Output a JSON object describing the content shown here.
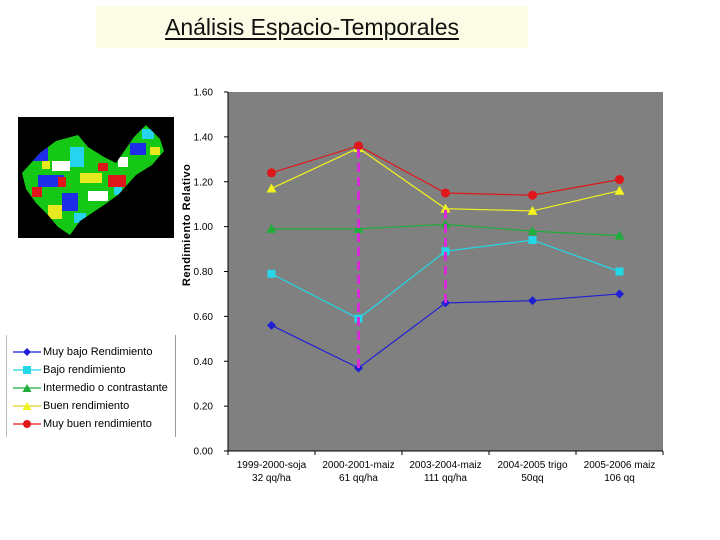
{
  "slide": {
    "title": "Análisis Espacio-Temporales"
  },
  "chart_data": {
    "type": "line",
    "title": "",
    "xlabel": "",
    "ylabel": "Rendimiento Relativo",
    "ylim": [
      0,
      1.6
    ],
    "yticks": [
      "0.00",
      "0.20",
      "0.40",
      "0.60",
      "0.80",
      "1.00",
      "1.20",
      "1.40",
      "1.60"
    ],
    "plot_background": "#808080",
    "categories": [
      [
        "1999-2000-soja",
        "32 qq/ha"
      ],
      [
        "2000-2001-maiz",
        "61 qq/ha"
      ],
      [
        "2003-2004-maiz",
        "111 qq/ha"
      ],
      [
        "2004-2005 trigo",
        "50qq"
      ],
      [
        "2005-2006 maiz",
        "106 qq"
      ]
    ],
    "series": [
      {
        "name": "Muy bajo Rendimiento",
        "values": [
          0.56,
          0.37,
          0.66,
          0.67,
          0.7
        ],
        "color": "#1f1fd6",
        "marker": "diamond"
      },
      {
        "name": "Bajo rendimiento",
        "values": [
          0.79,
          0.59,
          0.89,
          0.94,
          0.8
        ],
        "color": "#23d7e8",
        "marker": "square"
      },
      {
        "name": "Intermedio o contrastante",
        "values": [
          0.99,
          0.99,
          1.01,
          0.98,
          0.96
        ],
        "color": "#1fae3a",
        "marker": "triangle"
      },
      {
        "name": "Buen rendimiento",
        "values": [
          1.17,
          1.35,
          1.08,
          1.07,
          1.16
        ],
        "color": "#f2f21e",
        "marker": "triangle"
      },
      {
        "name": "Muy buen rendimiento",
        "values": [
          1.24,
          1.36,
          1.15,
          1.14,
          1.21
        ],
        "color": "#e0171a",
        "marker": "circle"
      }
    ],
    "annotations": [
      {
        "type": "dashed-vertical",
        "category_index": 1,
        "from": 0.37,
        "to": 1.36,
        "color": "#d62bd6"
      },
      {
        "type": "dashed-vertical",
        "category_index": 2,
        "from": 0.66,
        "to": 1.08,
        "color": "#d62bd6"
      }
    ],
    "legend_position": "left"
  }
}
